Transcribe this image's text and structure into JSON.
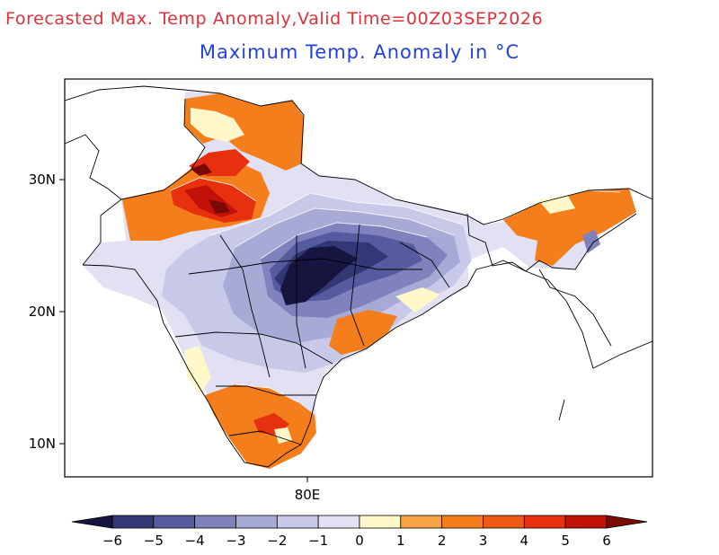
{
  "header": {
    "title": "Forecasted Max. Temp Anomaly,Valid Time=00Z03SEP2026"
  },
  "map": {
    "title": "Maximum Temp. Anomaly in °C",
    "lat_ticks": [
      "30N",
      "20N",
      "10N"
    ],
    "lon_ticks": [
      "80E"
    ]
  },
  "colorbar": {
    "labels": [
      "−6",
      "−5",
      "−4",
      "−3",
      "−2",
      "−1",
      "0",
      "1",
      "2",
      "3",
      "4",
      "5",
      "6"
    ],
    "colors": [
      "#151540",
      "#333775",
      "#565a9e",
      "#7f82bd",
      "#a8aad6",
      "#c8c9e8",
      "#e1e1f3",
      "#fdf7c9",
      "#f7a443",
      "#f47e1c",
      "#ee5a12",
      "#e6300e",
      "#c01208",
      "#7a0a06"
    ]
  }
}
